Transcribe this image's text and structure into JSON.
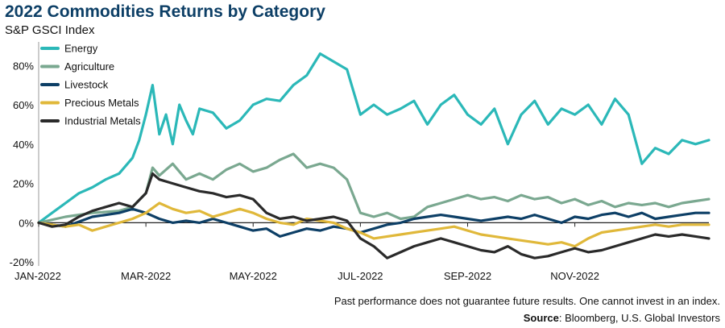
{
  "header": {
    "title": "2022 Commodities Returns by Category",
    "subtitle": "S&P GSCI Index"
  },
  "footer": {
    "disclaimer": "Past performance does not guarantee future results. One cannot invest in an index.",
    "source_label": "Source",
    "source_text": ": Bloomberg, U.S. Global Investors"
  },
  "chart_data": {
    "type": "line",
    "title": "2022 Commodities Returns by Category",
    "subtitle": "S&P GSCI Index",
    "xlabel": "",
    "ylabel": "",
    "x_ticks": [
      "JAN-2022",
      "MAR-2022",
      "MAY-2022",
      "JUL-2022",
      "SEP-2022",
      "NOV-2022"
    ],
    "x_tick_positions": [
      0,
      8,
      16,
      24,
      32,
      40
    ],
    "y_ticks": [
      "-20%",
      "0%",
      "20%",
      "40%",
      "60%",
      "80%"
    ],
    "y_tick_values": [
      -20,
      0,
      20,
      40,
      60,
      80
    ],
    "ylim": [
      -22,
      92
    ],
    "xlim": [
      0,
      50
    ],
    "x_unit": "weeks since start of 2022 (approx.)",
    "legend_position": "top-left",
    "grid": false,
    "series": [
      {
        "name": "Energy",
        "color": "#2bb8b8",
        "x": [
          0,
          1,
          2,
          3,
          4,
          5,
          6,
          7,
          7.5,
          8,
          8.5,
          9,
          9.5,
          10,
          10.5,
          11,
          11.5,
          12,
          13,
          14,
          15,
          16,
          17,
          18,
          19,
          20,
          21,
          22,
          23,
          24,
          25,
          26,
          27,
          28,
          29,
          30,
          31,
          32,
          33,
          34,
          35,
          36,
          37,
          38,
          39,
          40,
          41,
          42,
          43,
          44,
          45,
          46,
          47,
          48,
          49,
          50
        ],
        "values": [
          0,
          5,
          10,
          15,
          18,
          22,
          25,
          33,
          42,
          55,
          70,
          45,
          55,
          40,
          60,
          52,
          45,
          58,
          56,
          48,
          52,
          60,
          63,
          62,
          70,
          75,
          86,
          82,
          78,
          55,
          60,
          55,
          58,
          62,
          50,
          60,
          65,
          55,
          50,
          58,
          40,
          55,
          62,
          50,
          58,
          55,
          60,
          50,
          63,
          55,
          30,
          38,
          35,
          42,
          40,
          42
        ]
      },
      {
        "name": "Agriculture",
        "color": "#7aa890",
        "x": [
          0,
          2,
          4,
          6,
          7,
          8,
          8.5,
          9,
          10,
          11,
          12,
          13,
          14,
          15,
          16,
          17,
          18,
          19,
          20,
          21,
          22,
          23,
          24,
          25,
          26,
          27,
          28,
          29,
          30,
          31,
          32,
          33,
          34,
          35,
          36,
          37,
          38,
          39,
          40,
          41,
          42,
          43,
          44,
          45,
          46,
          47,
          48,
          49,
          50
        ],
        "values": [
          0,
          3,
          5,
          6,
          8,
          15,
          28,
          24,
          30,
          22,
          25,
          22,
          27,
          30,
          26,
          28,
          32,
          35,
          28,
          30,
          28,
          22,
          5,
          3,
          5,
          2,
          3,
          8,
          10,
          12,
          14,
          12,
          13,
          11,
          14,
          12,
          13,
          10,
          12,
          9,
          11,
          8,
          10,
          9,
          10,
          8,
          10,
          11,
          12
        ]
      },
      {
        "name": "Livestock",
        "color": "#0d3f66",
        "x": [
          0,
          2,
          4,
          6,
          7,
          8,
          9,
          10,
          11,
          12,
          13,
          14,
          15,
          16,
          17,
          18,
          19,
          20,
          21,
          22,
          23,
          24,
          25,
          26,
          27,
          28,
          29,
          30,
          31,
          32,
          33,
          34,
          35,
          36,
          37,
          38,
          39,
          40,
          41,
          42,
          43,
          44,
          45,
          46,
          47,
          48,
          49,
          50
        ],
        "values": [
          0,
          -2,
          3,
          5,
          7,
          5,
          2,
          0,
          1,
          0,
          2,
          0,
          -2,
          -4,
          -3,
          -7,
          -5,
          -3,
          -4,
          -2,
          -3,
          -5,
          -3,
          -1,
          0,
          2,
          3,
          4,
          3,
          2,
          1,
          2,
          3,
          2,
          4,
          2,
          0,
          3,
          2,
          4,
          5,
          3,
          5,
          2,
          3,
          4,
          5,
          5
        ]
      },
      {
        "name": "Precious Metals",
        "color": "#e0b83a",
        "x": [
          0,
          2,
          3,
          4,
          6,
          7,
          8,
          9,
          10,
          11,
          12,
          13,
          14,
          15,
          16,
          17,
          18,
          19,
          20,
          21,
          22,
          23,
          24,
          25,
          26,
          27,
          28,
          29,
          30,
          31,
          32,
          33,
          34,
          35,
          36,
          37,
          38,
          39,
          40,
          41,
          42,
          43,
          44,
          45,
          46,
          47,
          48,
          49,
          50
        ],
        "values": [
          0,
          -2,
          -1,
          -4,
          0,
          2,
          5,
          10,
          7,
          5,
          6,
          3,
          5,
          7,
          5,
          2,
          0,
          -1,
          2,
          1,
          0,
          -3,
          -5,
          -8,
          -7,
          -6,
          -5,
          -4,
          -3,
          -2,
          -4,
          -6,
          -7,
          -8,
          -9,
          -10,
          -11,
          -10,
          -12,
          -8,
          -5,
          -4,
          -3,
          -2,
          -1,
          -2,
          -1,
          -1,
          -1
        ]
      },
      {
        "name": "Industrial Metals",
        "color": "#2a2a2a",
        "x": [
          0,
          1,
          2,
          3,
          4,
          5,
          6,
          7,
          8,
          8.5,
          9,
          10,
          11,
          12,
          13,
          14,
          15,
          16,
          17,
          18,
          19,
          20,
          21,
          22,
          23,
          24,
          25,
          26,
          27,
          28,
          29,
          30,
          31,
          32,
          33,
          34,
          35,
          36,
          37,
          38,
          39,
          40,
          41,
          42,
          43,
          44,
          45,
          46,
          47,
          48,
          49,
          50
        ],
        "values": [
          0,
          -2,
          -1,
          3,
          6,
          8,
          10,
          8,
          15,
          25,
          22,
          20,
          18,
          16,
          15,
          13,
          14,
          12,
          5,
          2,
          3,
          1,
          2,
          3,
          1,
          -8,
          -12,
          -18,
          -15,
          -12,
          -10,
          -8,
          -10,
          -12,
          -14,
          -15,
          -12,
          -16,
          -18,
          -17,
          -15,
          -13,
          -15,
          -14,
          -12,
          -10,
          -8,
          -6,
          -7,
          -6,
          -7,
          -8
        ]
      }
    ]
  }
}
